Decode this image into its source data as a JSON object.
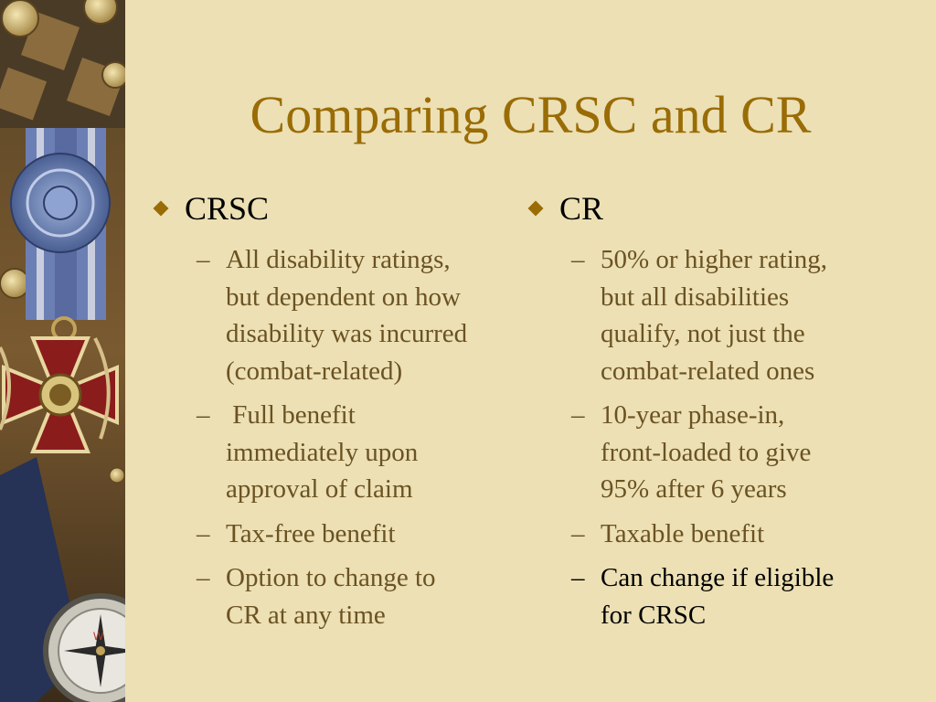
{
  "slide": {
    "title": "Comparing CRSC and CR"
  },
  "columns": [
    {
      "heading": "CRSC",
      "items": [
        {
          "dash": "–",
          "lines": [
            "All disability ratings,",
            "but dependent on how",
            "disability was incurred",
            "(combat-related)"
          ]
        },
        {
          "dash": "–",
          "lines": [
            " Full benefit",
            "immediately upon",
            "approval of claim"
          ]
        },
        {
          "dash": "–",
          "lines": [
            "Tax-free benefit"
          ]
        },
        {
          "dash": "–",
          "lines": [
            "Option to change to",
            "CR at any time"
          ]
        }
      ]
    },
    {
      "heading": "CR",
      "items": [
        {
          "dash": "–",
          "lines": [
            "50% or higher rating,",
            "but all disabilities",
            "qualify, not just the",
            "combat-related ones"
          ]
        },
        {
          "dash": "–",
          "lines": [
            "10-year phase-in,",
            "front-loaded to give",
            "95% after 6 years"
          ]
        },
        {
          "dash": "–",
          "lines": [
            "Taxable benefit"
          ]
        },
        {
          "dash": "–",
          "lines": [
            "Can change if eligible",
            "for CRSC"
          ]
        }
      ]
    }
  ],
  "decor": {
    "bullet_icon": "diamond-bullet-icon",
    "collage_icon": "medal-collage-icon",
    "colors": {
      "background": "#ece0b4",
      "title": "#9a6c06",
      "bullet": "#9a6c06",
      "heading_text": "#000000",
      "item_text": "#6b5222",
      "emphasis_text": "#000000"
    }
  }
}
